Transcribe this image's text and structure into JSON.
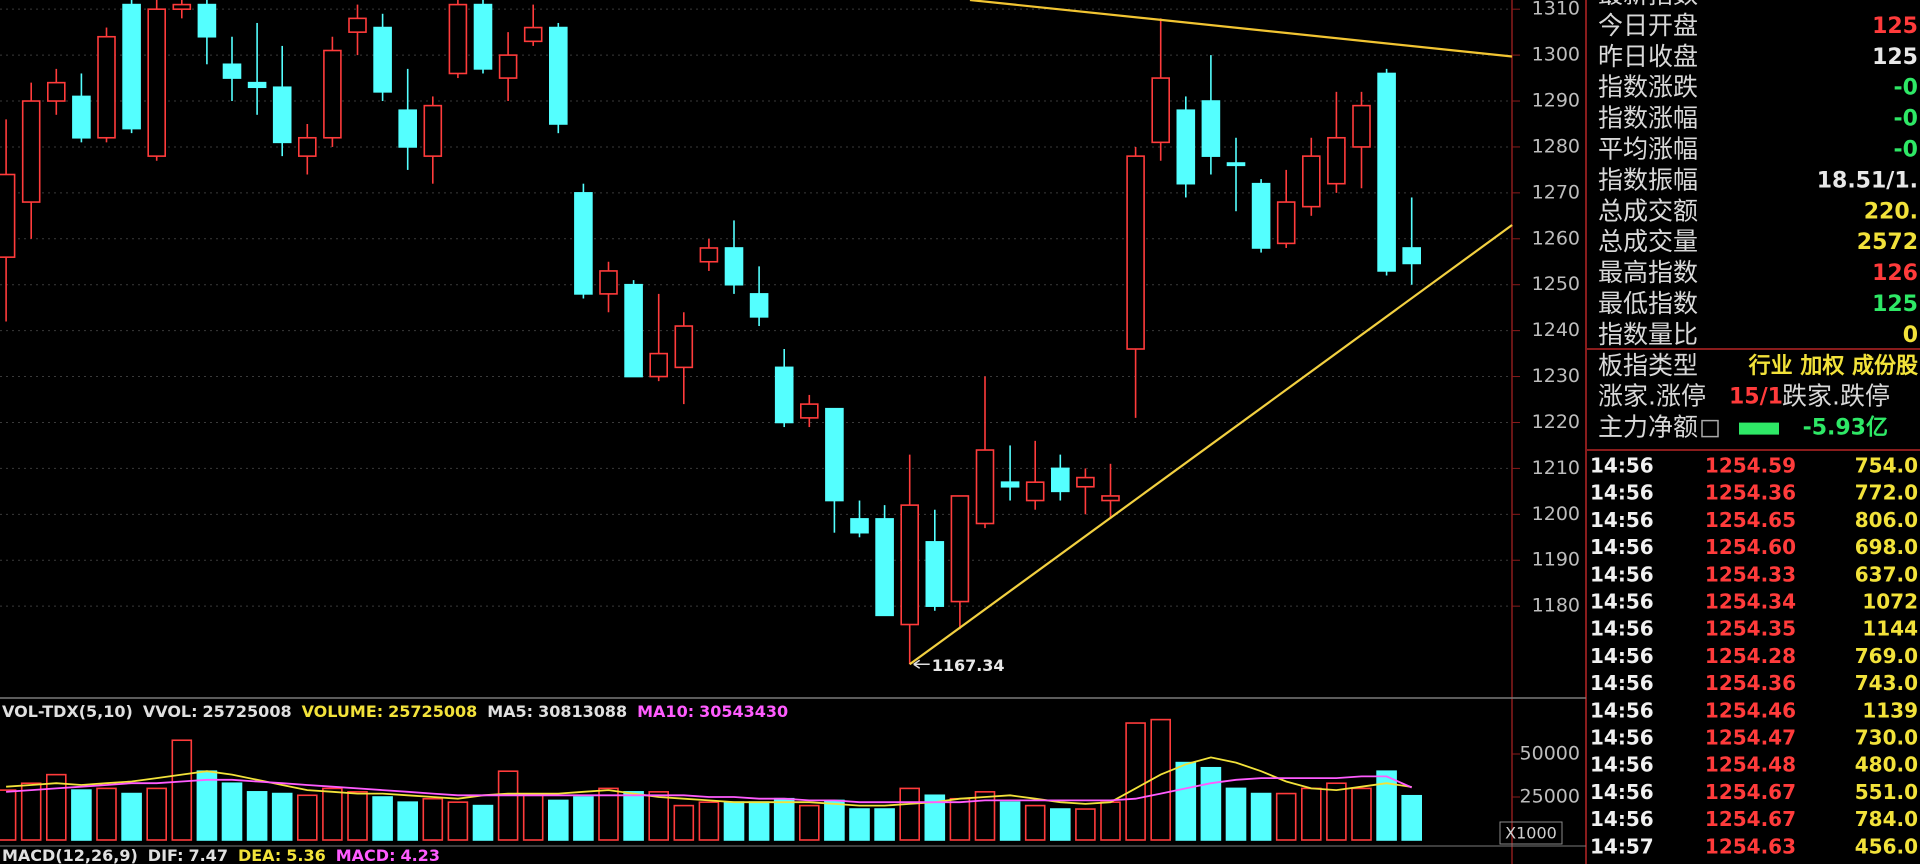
{
  "chart_data": {
    "type": "candlestick",
    "open": [
      1256,
      1268,
      1290,
      1291,
      1282,
      1311,
      1278,
      1310,
      1311,
      1298,
      1294,
      1293,
      1278,
      1282,
      1305,
      1306,
      1288,
      1278,
      1296,
      1311,
      1295,
      1303,
      1306,
      1270,
      1248,
      1250,
      1230,
      1232,
      1255,
      1258,
      1248,
      1232,
      1221,
      1223,
      1199,
      1199,
      1176,
      1194,
      1181,
      1198,
      1207,
      1203,
      1210,
      1206,
      1203,
      1236,
      1281,
      1288,
      1290,
      1276.5,
      1272,
      1259,
      1267,
      1272,
      1280,
      1296,
      1258
    ],
    "high": [
      1286,
      1294,
      1297,
      1296,
      1306,
      1312,
      1312,
      1312,
      1312,
      1304,
      1307,
      1302,
      1285,
      1304,
      1311,
      1309,
      1297,
      1291,
      1312,
      1312,
      1305,
      1311,
      1307,
      1272,
      1255,
      1251,
      1248,
      1244,
      1260,
      1264,
      1254,
      1236,
      1226,
      1223,
      1203,
      1202,
      1213,
      1201,
      1204,
      1230,
      1215,
      1216,
      1213,
      1210,
      1211,
      1280,
      1308,
      1291,
      1300,
      1282,
      1273,
      1275,
      1282,
      1292,
      1292,
      1297,
      1269
    ],
    "low": [
      1242,
      1260,
      1287,
      1281,
      1281,
      1283,
      1277,
      1308,
      1298,
      1290,
      1287,
      1278,
      1274,
      1280,
      1300,
      1290,
      1275,
      1272,
      1295,
      1296,
      1290,
      1302,
      1283,
      1247,
      1244,
      1230,
      1229,
      1224,
      1253,
      1248,
      1241,
      1219,
      1219,
      1196,
      1195,
      1178,
      1167.34,
      1179,
      1175,
      1197,
      1203,
      1201,
      1203,
      1200,
      1199,
      1221,
      1277,
      1269,
      1274,
      1266,
      1257,
      1258,
      1265,
      1270,
      1271,
      1252,
      1250
    ],
    "close": [
      1274,
      1290,
      1294,
      1282,
      1304,
      1284,
      1310,
      1311,
      1304,
      1295,
      1293,
      1281,
      1282,
      1301,
      1308,
      1292,
      1280,
      1289,
      1311,
      1297,
      1300,
      1306,
      1285,
      1248,
      1253,
      1230,
      1235,
      1241,
      1258,
      1250,
      1243,
      1220,
      1224,
      1203,
      1196,
      1178,
      1202,
      1180,
      1204,
      1214,
      1206,
      1207,
      1205,
      1208,
      1204,
      1278,
      1295,
      1272,
      1278,
      1276,
      1258,
      1268,
      1278,
      1282,
      1289,
      1253,
      1254.63
    ],
    "up_color": "#ff3b3b",
    "down_color": "#54ffff",
    "ylim": [
      1160,
      1312
    ],
    "yticks": [
      1180,
      1190,
      1200,
      1210,
      1220,
      1230,
      1240,
      1250,
      1260,
      1270,
      1280,
      1290,
      1300,
      1310
    ],
    "grid": true,
    "trendlines": [
      {
        "color": "#f2c532",
        "points": [
          [
            38.4,
            1312
          ],
          [
            60,
            1299.7
          ]
        ]
      },
      {
        "color": "#f2d040",
        "points": [
          [
            36,
            1167.34
          ],
          [
            60,
            1263
          ]
        ]
      }
    ],
    "volume": {
      "header": [
        {
          "label": "VOL-TDX(5,10)",
          "color": "#e0e0e0"
        },
        {
          "label": "VVOL:",
          "value": 25725008,
          "color": "#e0e0e0"
        },
        {
          "label": "VOLUME:",
          "value": 25725008,
          "color": "#f2e23a"
        },
        {
          "label": "MA5:",
          "value": 30813088,
          "color": "#e0e0e0"
        },
        {
          "label": "MA10:",
          "value": 30543430,
          "color": "#ff5cff"
        }
      ],
      "values": [
        29000,
        33000,
        38000,
        29000,
        30000,
        27000,
        30000,
        58000,
        40000,
        33000,
        28000,
        27000,
        26000,
        30000,
        28000,
        25000,
        22000,
        24000,
        22000,
        20000,
        40000,
        26000,
        23000,
        25000,
        30000,
        28000,
        28000,
        20000,
        22000,
        22000,
        22000,
        24000,
        20000,
        23000,
        18000,
        18000,
        30000,
        26000,
        24000,
        28000,
        22000,
        20000,
        18000,
        18000,
        22000,
        68000,
        70000,
        45000,
        42000,
        30000,
        27000,
        27000,
        30000,
        33000,
        30000,
        40000,
        25725
      ],
      "series": [
        {
          "name": "MA5",
          "color": "#f2e23a",
          "values": [
            31000,
            32000,
            33000,
            32000,
            33000,
            34000,
            36000,
            38000,
            40000,
            38000,
            35000,
            32000,
            29000,
            28000,
            27000,
            27000,
            26000,
            25000,
            24000,
            26000,
            27000,
            27000,
            27000,
            28000,
            29000,
            27000,
            25000,
            24000,
            23000,
            22000,
            22000,
            22000,
            22000,
            21000,
            20000,
            20000,
            21000,
            22000,
            24000,
            25000,
            26000,
            24000,
            22000,
            21000,
            22000,
            30000,
            38000,
            44000,
            48000,
            45000,
            40000,
            34000,
            30000,
            29000,
            31000,
            33000,
            30813
          ]
        },
        {
          "name": "MA10",
          "color": "#ff5cff",
          "values": [
            28000,
            29000,
            30000,
            31000,
            32000,
            33000,
            33000,
            34000,
            35000,
            35000,
            34000,
            33000,
            32000,
            31000,
            30000,
            29000,
            28000,
            27000,
            26000,
            26000,
            26000,
            26000,
            26000,
            26000,
            26000,
            26000,
            26000,
            26000,
            25000,
            25000,
            24000,
            24000,
            23000,
            23000,
            22000,
            22000,
            22000,
            22000,
            22000,
            23000,
            23000,
            23000,
            23000,
            23000,
            23000,
            24000,
            27000,
            30000,
            33000,
            35000,
            36000,
            36000,
            36000,
            36000,
            37000,
            37000,
            30543
          ]
        }
      ],
      "ylim": [
        0,
        75000
      ],
      "yticks": [
        25000,
        50000
      ],
      "unit_label": "X1000"
    },
    "macd_header": [
      {
        "label": "MACD(12,26,9)",
        "color": "#e0e0e0"
      },
      {
        "label": "DIF:",
        "value": 7.47,
        "color": "#e0e0e0"
      },
      {
        "label": "DEA:",
        "value": 5.36,
        "color": "#f2e23a"
      },
      {
        "label": "MACD:",
        "value": 4.23,
        "color": "#ff5cff"
      }
    ]
  },
  "quote_panel": {
    "rows": [
      {
        "label": "最新指数"
      },
      {
        "label": "今日开盘",
        "value": "125",
        "color": "#ff3b3b"
      },
      {
        "label": "昨日收盘",
        "value": "125",
        "color": "#e8e8e8"
      },
      {
        "label": "指数涨跌",
        "value": "-0",
        "color": "#2ee866"
      },
      {
        "label": "指数涨幅",
        "value": "-0",
        "color": "#2ee866"
      },
      {
        "label": "平均涨幅",
        "value": "-0",
        "color": "#2ee866"
      },
      {
        "label": "指数振幅",
        "value": "18.51/1.",
        "color": "#e8e8e8"
      },
      {
        "label": "总成交额",
        "value": "220.",
        "color": "#f2e23a"
      },
      {
        "label": "总成交量",
        "value": "2572",
        "color": "#f2e23a"
      },
      {
        "label": "最高指数",
        "value": "126",
        "color": "#ff3b3b"
      },
      {
        "label": "最低指数",
        "value": "125",
        "color": "#2ee866"
      },
      {
        "label": "指数量比",
        "value": "0",
        "color": "#f2e23a"
      },
      {
        "label": "板指类型",
        "value": "行业 加权 成份股",
        "color": "#f2e23a"
      },
      {
        "label": "涨家.涨停",
        "value": "15/1",
        "color": "#ff3b3b",
        "label2": "跌家.跌停"
      },
      {
        "label": "主力净额",
        "value": "-5.93亿",
        "color": "#2ee866"
      }
    ]
  },
  "tick_table": {
    "rows": [
      [
        "14:56",
        "1254.59",
        "754.0"
      ],
      [
        "14:56",
        "1254.36",
        "772.0"
      ],
      [
        "14:56",
        "1254.65",
        "806.0"
      ],
      [
        "14:56",
        "1254.60",
        "698.0"
      ],
      [
        "14:56",
        "1254.33",
        "637.0"
      ],
      [
        "14:56",
        "1254.34",
        "1072"
      ],
      [
        "14:56",
        "1254.35",
        "1144"
      ],
      [
        "14:56",
        "1254.28",
        "769.0"
      ],
      [
        "14:56",
        "1254.36",
        "743.0"
      ],
      [
        "14:56",
        "1254.46",
        "1139"
      ],
      [
        "14:56",
        "1254.47",
        "730.0"
      ],
      [
        "14:56",
        "1254.48",
        "480.0"
      ],
      [
        "14:56",
        "1254.67",
        "551.0"
      ],
      [
        "14:56",
        "1254.67",
        "784.0"
      ],
      [
        "14:57",
        "1254.63",
        "456.0"
      ]
    ]
  }
}
